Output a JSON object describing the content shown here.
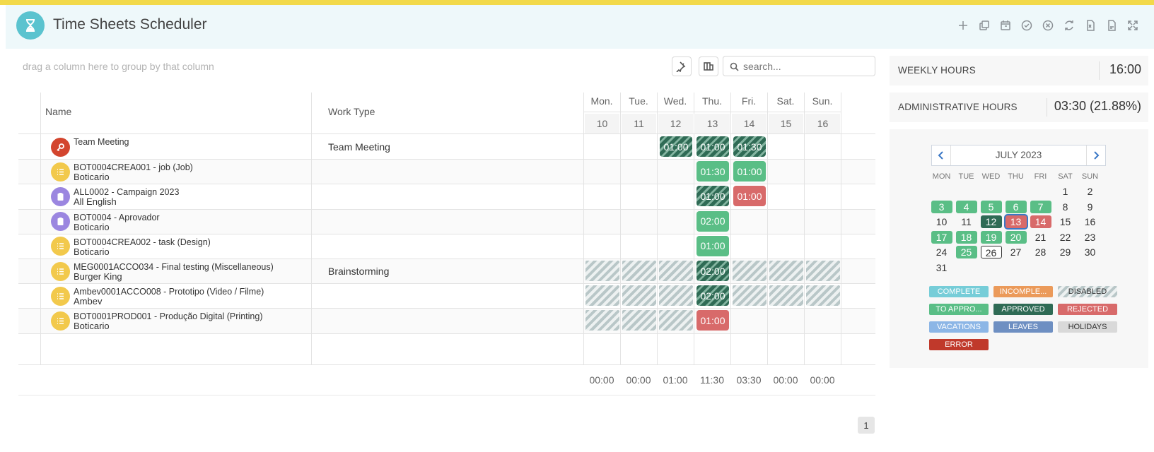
{
  "app": {
    "title": "Time Sheets Scheduler"
  },
  "header_icons": [
    "plus-icon",
    "copy-icon",
    "calendar-icon",
    "check-circle-icon",
    "close-circle-icon",
    "refresh-icon",
    "excel-file-icon",
    "pdf-file-icon",
    "fullscreen-icon"
  ],
  "toolbar": {
    "group_hint": "drag a column here to group by that column",
    "search_placeholder": "search..."
  },
  "grid": {
    "columns": {
      "name": "Name",
      "work_type": "Work Type"
    },
    "days": [
      {
        "name": "Mon.",
        "num": "10"
      },
      {
        "name": "Tue.",
        "num": "11"
      },
      {
        "name": "Wed.",
        "num": "12"
      },
      {
        "name": "Thu.",
        "num": "13"
      },
      {
        "name": "Fri.",
        "num": "14"
      },
      {
        "name": "Sat.",
        "num": "15"
      },
      {
        "name": "Sun.",
        "num": "16"
      }
    ],
    "rows": [
      {
        "line1": "Team Meeting",
        "line2": "",
        "work_type": "Team Meeting",
        "avatar_color": "#d3452e",
        "avatar_icon": "key-icon",
        "cells": [
          null,
          null,
          {
            "v": "01:00",
            "s": "dark-hatch"
          },
          {
            "v": "01:00",
            "s": "dark-hatch"
          },
          {
            "v": "01:30",
            "s": "dark-hatch"
          },
          null,
          null
        ]
      },
      {
        "line1": "BOT0004CREA001 - job (Job)",
        "line2": "Boticario",
        "work_type": "",
        "avatar_color": "#f2c94c",
        "avatar_icon": "list-icon",
        "cells": [
          null,
          null,
          null,
          {
            "v": "01:30",
            "s": "green"
          },
          {
            "v": "01:00",
            "s": "green"
          },
          null,
          null
        ]
      },
      {
        "line1": "ALL0002 - Campaign 2023",
        "line2": "All English",
        "work_type": "",
        "avatar_color": "#9b86e0",
        "avatar_icon": "clipboard-icon",
        "cells": [
          null,
          null,
          null,
          {
            "v": "01:00",
            "s": "dark-hatch"
          },
          {
            "v": "01:00",
            "s": "red"
          },
          null,
          null
        ]
      },
      {
        "line1": "BOT0004 - Aprovador",
        "line2": "Boticario",
        "work_type": "",
        "avatar_color": "#9b86e0",
        "avatar_icon": "clipboard-icon",
        "cells": [
          null,
          null,
          null,
          {
            "v": "02:00",
            "s": "green"
          },
          null,
          null,
          null
        ]
      },
      {
        "line1": "BOT0004CREA002 - task (Design)",
        "line2": "Boticario",
        "work_type": "",
        "avatar_color": "#f2c94c",
        "avatar_icon": "list-icon",
        "cells": [
          null,
          null,
          null,
          {
            "v": "01:00",
            "s": "green"
          },
          null,
          null,
          null
        ]
      },
      {
        "line1": "MEG0001ACCO034 - Final testing (Miscellaneous)",
        "line2": "Burger King",
        "work_type": "Brainstorming",
        "avatar_color": "#f2c94c",
        "avatar_icon": "list-icon",
        "cells": [
          {
            "v": "",
            "s": "grey-hatch"
          },
          {
            "v": "",
            "s": "grey-hatch"
          },
          {
            "v": "",
            "s": "grey-hatch"
          },
          {
            "v": "02:00",
            "s": "dark-hatch"
          },
          {
            "v": "",
            "s": "grey-hatch"
          },
          {
            "v": "",
            "s": "grey-hatch"
          },
          {
            "v": "",
            "s": "grey-hatch"
          }
        ]
      },
      {
        "line1": "Ambev0001ACCO008 - Prototipo (Video / Filme)",
        "line2": "Ambev",
        "work_type": "",
        "avatar_color": "#f2c94c",
        "avatar_icon": "list-icon",
        "cells": [
          {
            "v": "",
            "s": "grey-hatch"
          },
          {
            "v": "",
            "s": "grey-hatch"
          },
          {
            "v": "",
            "s": "grey-hatch"
          },
          {
            "v": "02:00",
            "s": "dark-hatch"
          },
          {
            "v": "",
            "s": "grey-hatch"
          },
          {
            "v": "",
            "s": "grey-hatch"
          },
          {
            "v": "",
            "s": "grey-hatch"
          }
        ]
      },
      {
        "line1": "BOT0001PROD001 - Produção Digital (Printing)",
        "line2": "Boticario",
        "work_type": "",
        "avatar_color": "#f2c94c",
        "avatar_icon": "list-icon",
        "cells": [
          {
            "v": "",
            "s": "grey-hatch"
          },
          {
            "v": "",
            "s": "grey-hatch"
          },
          {
            "v": "",
            "s": "grey-hatch"
          },
          {
            "v": "01:00",
            "s": "red"
          },
          null,
          null,
          null
        ]
      }
    ],
    "totals": [
      "00:00",
      "00:00",
      "01:00",
      "11:30",
      "03:30",
      "00:00",
      "00:00"
    ]
  },
  "pager": {
    "page": "1"
  },
  "stats": {
    "weekly_label": "WEEKLY HOURS",
    "weekly_value": "16:00",
    "admin_label": "ADMINISTRATIVE HOURS",
    "admin_value": "03:30 (21.88%)"
  },
  "calendar": {
    "month": "JULY 2023",
    "dow": [
      "MON",
      "TUE",
      "WED",
      "THU",
      "FRI",
      "SAT",
      "SUN"
    ],
    "weeks": [
      [
        null,
        null,
        null,
        null,
        null,
        {
          "d": "1"
        },
        {
          "d": "2"
        }
      ],
      [
        {
          "d": "3",
          "s": "green"
        },
        {
          "d": "4",
          "s": "green"
        },
        {
          "d": "5",
          "s": "green"
        },
        {
          "d": "6",
          "s": "green"
        },
        {
          "d": "7",
          "s": "green"
        },
        {
          "d": "8"
        },
        {
          "d": "9"
        }
      ],
      [
        {
          "d": "10"
        },
        {
          "d": "11"
        },
        {
          "d": "12",
          "s": "dark"
        },
        {
          "d": "13",
          "s": "red-sel"
        },
        {
          "d": "14",
          "s": "red"
        },
        {
          "d": "15"
        },
        {
          "d": "16"
        }
      ],
      [
        {
          "d": "17",
          "s": "green"
        },
        {
          "d": "18",
          "s": "green"
        },
        {
          "d": "19",
          "s": "green"
        },
        {
          "d": "20",
          "s": "green"
        },
        {
          "d": "21"
        },
        {
          "d": "22"
        },
        {
          "d": "23"
        }
      ],
      [
        {
          "d": "24"
        },
        {
          "d": "25",
          "s": "green"
        },
        {
          "d": "26",
          "s": "today"
        },
        {
          "d": "27"
        },
        {
          "d": "28"
        },
        {
          "d": "29"
        },
        {
          "d": "30"
        }
      ],
      [
        {
          "d": "31"
        },
        null,
        null,
        null,
        null,
        null,
        null
      ]
    ]
  },
  "legend": [
    {
      "label": "COMPLETE",
      "color": "#76cdd8",
      "text_color": "#ffffff"
    },
    {
      "label": "INCOMPLE...",
      "color": "#eb9a5a",
      "text_color": "#ffffff"
    },
    {
      "label": "DISABLED",
      "color": "hatch",
      "text_color": "#333333"
    },
    {
      "label": "TO APPRO...",
      "color": "#5abe86",
      "text_color": "#ffffff"
    },
    {
      "label": "APPROVED",
      "color": "#2f6b55",
      "text_color": "#ffffff"
    },
    {
      "label": "REJECTED",
      "color": "#d86a6a",
      "text_color": "#ffffff"
    },
    {
      "label": "VACATIONS",
      "color": "#8cb6e6",
      "text_color": "#ffffff"
    },
    {
      "label": "LEAVES",
      "color": "#6e8fc2",
      "text_color": "#ffffff"
    },
    {
      "label": "HOLIDAYS",
      "color": "#d9d9d9",
      "text_color": "#333333"
    },
    {
      "label": "ERROR",
      "color": "#c0392b",
      "text_color": "#ffffff"
    }
  ]
}
